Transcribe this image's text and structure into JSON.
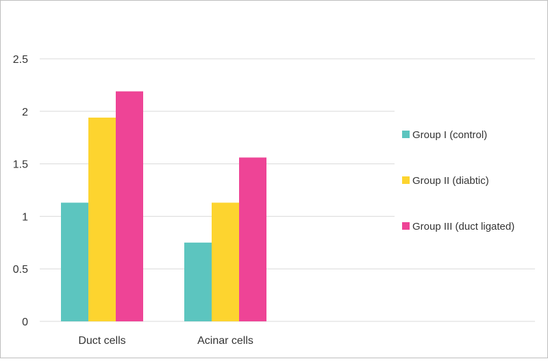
{
  "chart_data": {
    "type": "bar",
    "title": "",
    "xlabel": "",
    "ylabel": "",
    "categories": [
      "Duct cells",
      "Acinar cells"
    ],
    "series": [
      {
        "name": "Group I (control)",
        "values": [
          1.13,
          0.75
        ],
        "color": "#5cc5bf"
      },
      {
        "name": "Group II (diabtic)",
        "values": [
          1.94,
          1.13
        ],
        "color": "#fdd42f"
      },
      {
        "name": "Group III (duct ligated)",
        "values": [
          2.19,
          1.56
        ],
        "color": "#ee4496"
      }
    ],
    "ylim": [
      0,
      2.5
    ],
    "yticks": [
      "0",
      "0.5",
      "1",
      "1.5",
      "2",
      "2.5"
    ],
    "grid": true,
    "legend_position": "right"
  }
}
